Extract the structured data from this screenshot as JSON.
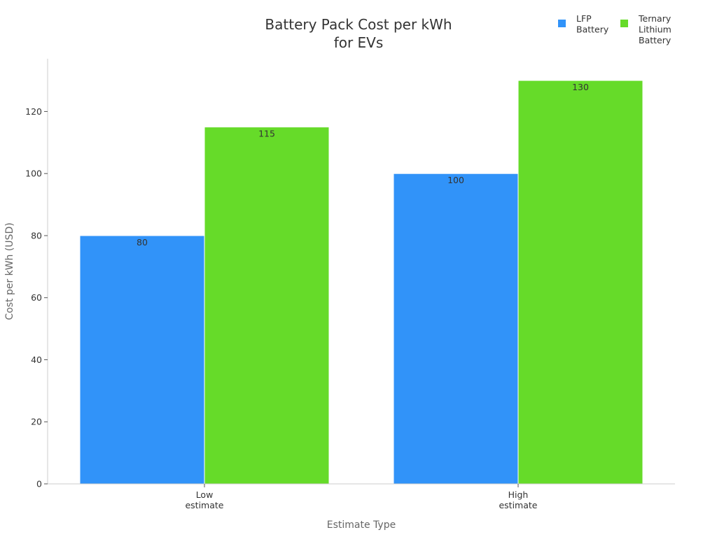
{
  "chart_data": {
    "type": "bar",
    "title": [
      "Battery Pack Cost per kWh",
      "for EVs"
    ],
    "xlabel": "Estimate Type",
    "ylabel": "Cost per kWh (USD)",
    "categories": [
      [
        "Low",
        "estimate"
      ],
      [
        "High",
        "estimate"
      ]
    ],
    "series": [
      {
        "name": [
          "LFP",
          "Battery"
        ],
        "color": "#3193f9",
        "values": [
          80,
          100
        ]
      },
      {
        "name": [
          "Ternary",
          "Lithium",
          "Battery"
        ],
        "color": "#66db29",
        "values": [
          115,
          130
        ]
      }
    ],
    "yticks": [
      0,
      20,
      40,
      60,
      80,
      100,
      120
    ],
    "ylim": [
      0,
      137
    ],
    "grid": false,
    "legend_position": "top-right"
  }
}
